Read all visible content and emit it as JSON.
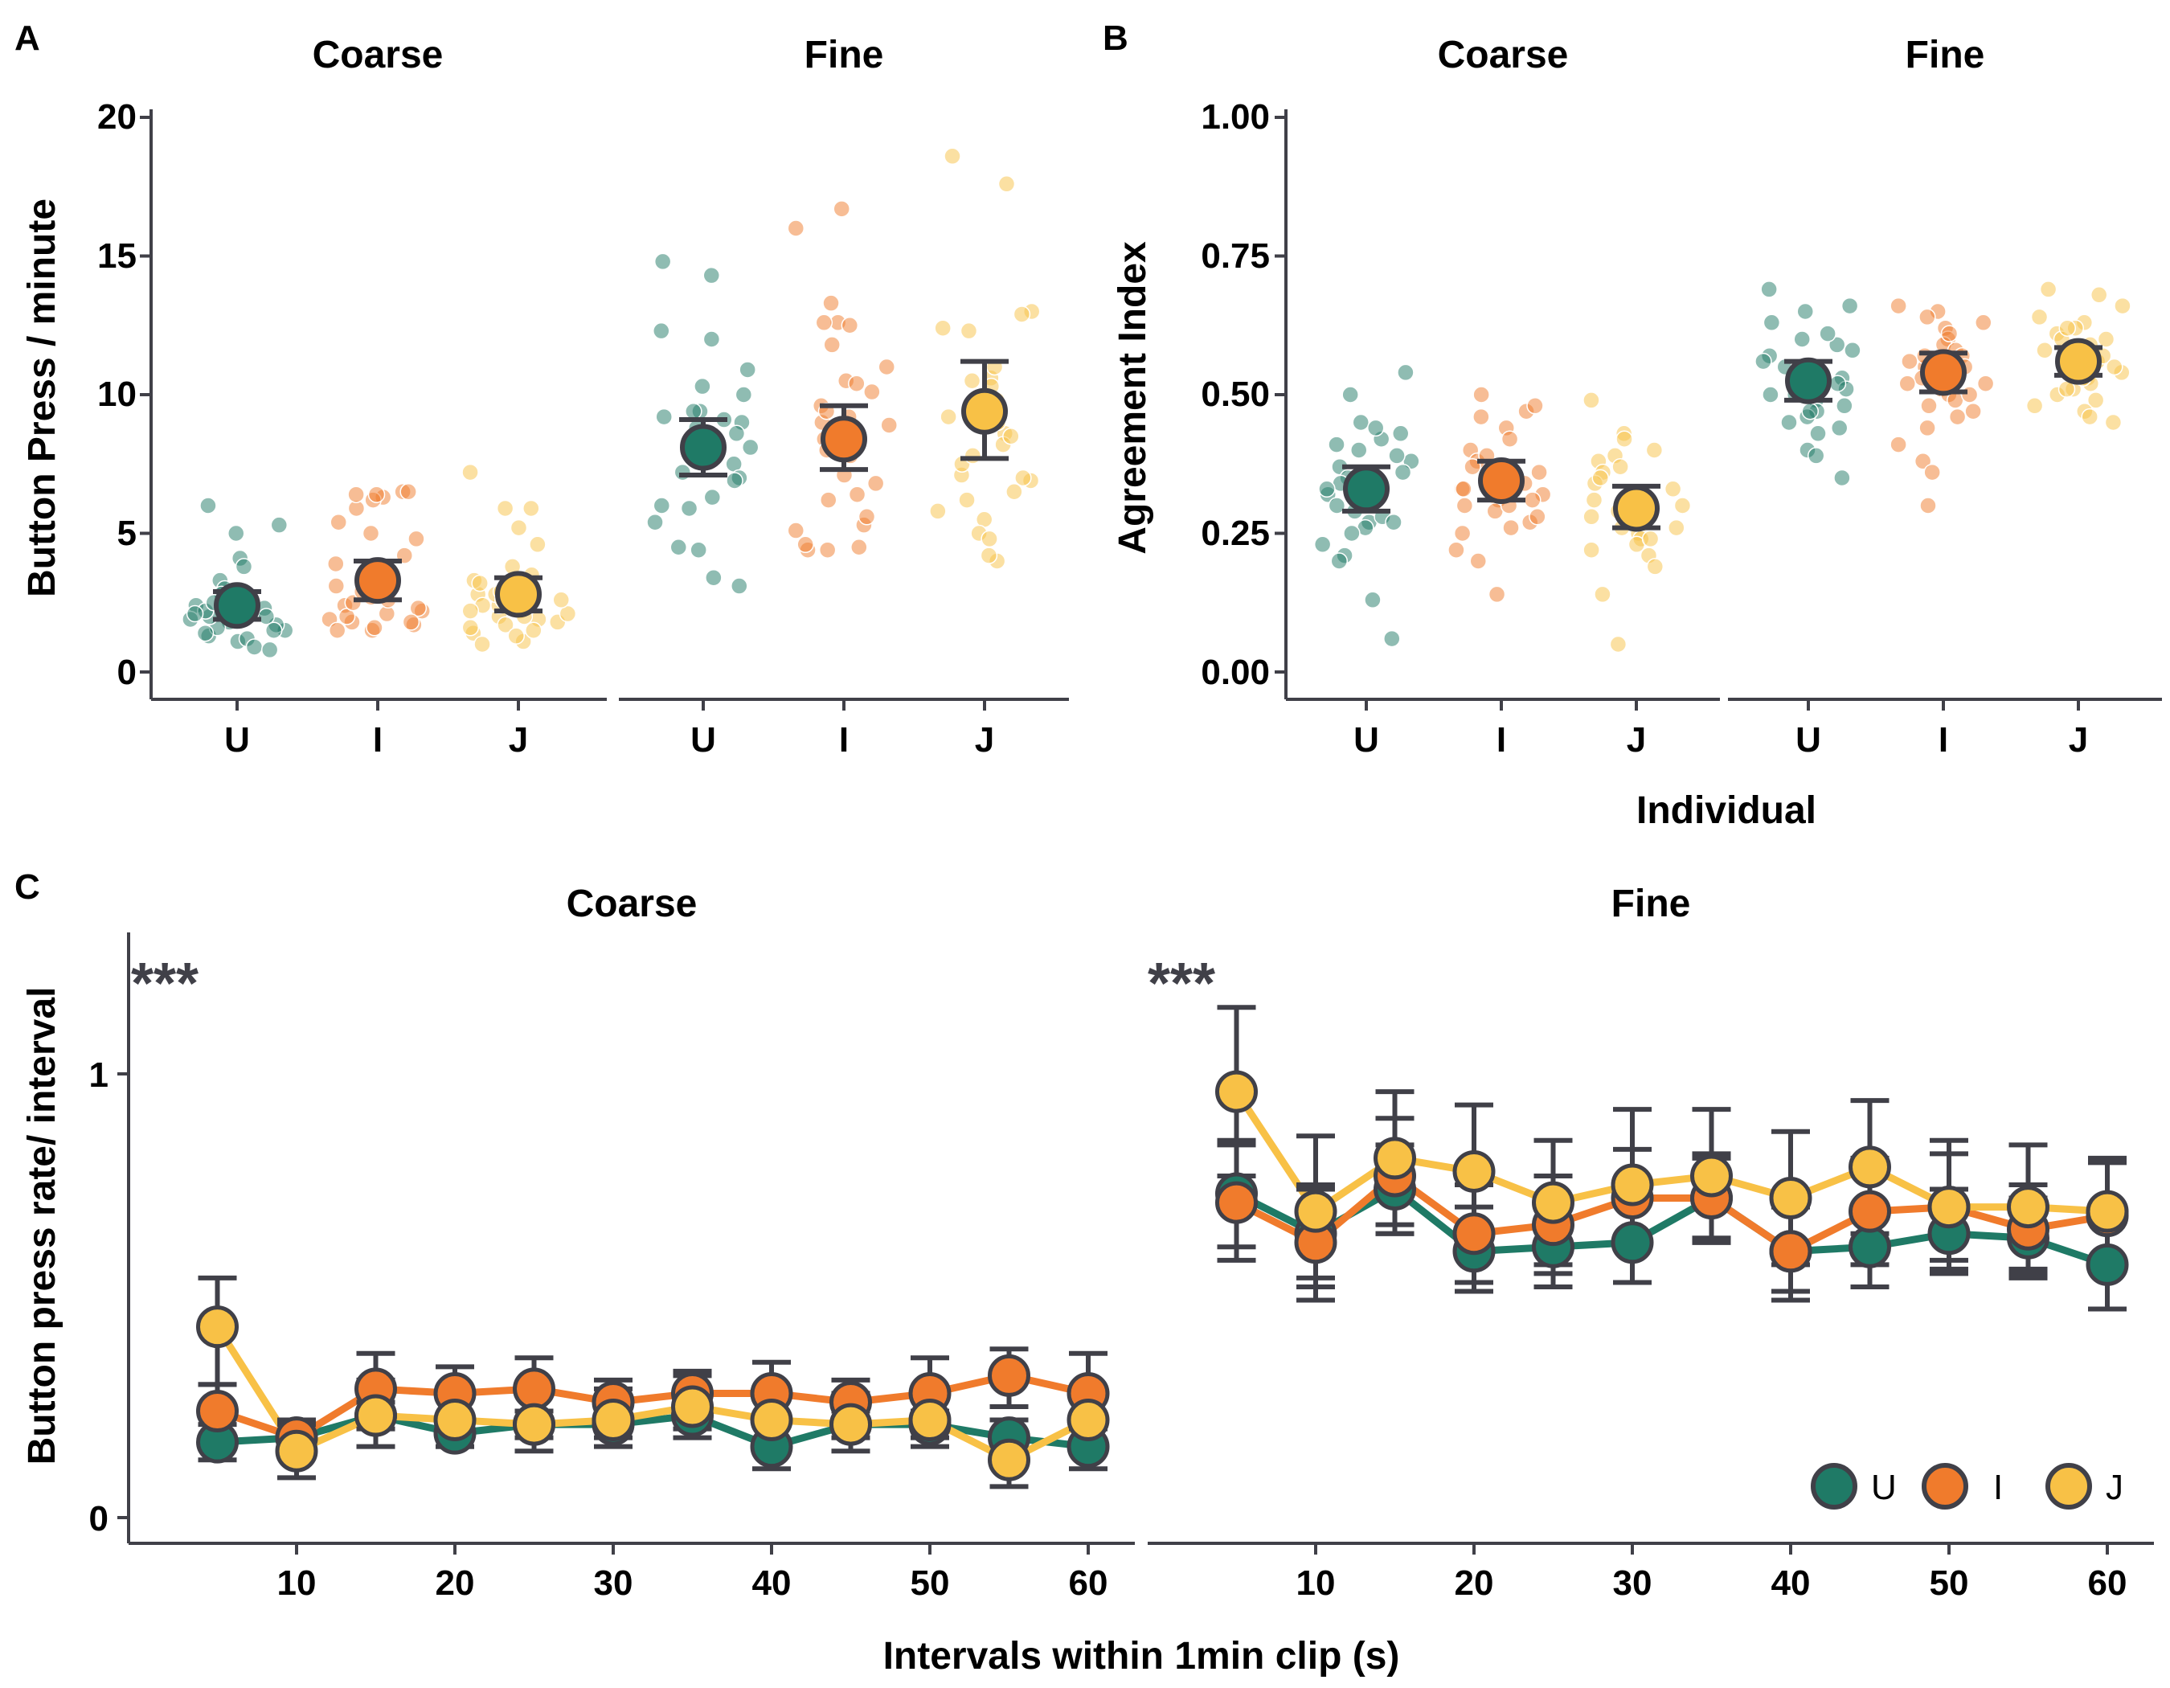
{
  "colors": {
    "U": "#1f7a66",
    "I": "#f07b2c",
    "J": "#f8c146",
    "axis": "#404048"
  },
  "panels": {
    "A": {
      "letter": "A",
      "ylabel": "Button Press / minute",
      "ylim": [
        -1,
        21
      ],
      "yticks": [
        "0",
        "5",
        "10",
        "15",
        "20"
      ],
      "facets": [
        "Coarse",
        "Fine"
      ],
      "categories": [
        "U",
        "I",
        "J"
      ]
    },
    "B": {
      "letter": "B",
      "ylabel": "Agreement Index",
      "xlabel": "Individual",
      "ylim": [
        -0.05,
        1.05
      ],
      "yticks": [
        "0.00",
        "0.25",
        "0.50",
        "0.75",
        "1.00"
      ],
      "facets": [
        "Coarse",
        "Fine"
      ],
      "categories": [
        "U",
        "I",
        "J"
      ]
    },
    "C": {
      "letter": "C",
      "ylabel": "Button press rate/ interval",
      "xlabel": "Intervals within 1min clip (s)",
      "ylim": [
        -0.05,
        1.3
      ],
      "yticks": [
        "0",
        "1"
      ],
      "xticks": [
        "10",
        "20",
        "30",
        "40",
        "50",
        "60"
      ],
      "facets": [
        "Coarse",
        "Fine"
      ],
      "annotation": "***"
    }
  },
  "legend": [
    {
      "key": "U",
      "label": "U"
    },
    {
      "key": "I",
      "label": "I"
    },
    {
      "key": "J",
      "label": "J"
    }
  ],
  "chart_data": [
    {
      "type": "scatter",
      "panel": "A",
      "ylabel": "Button Press / minute",
      "facets": [
        "Coarse",
        "Fine"
      ],
      "categories": [
        "U",
        "I",
        "J"
      ],
      "ylim": [
        0,
        21
      ],
      "summary": {
        "Coarse": {
          "U": {
            "mean": 2.4,
            "lo": 1.9,
            "hi": 2.9
          },
          "I": {
            "mean": 3.3,
            "lo": 2.6,
            "hi": 4.0
          },
          "J": {
            "mean": 2.8,
            "lo": 2.2,
            "hi": 3.4
          }
        },
        "Fine": {
          "U": {
            "mean": 8.1,
            "lo": 7.1,
            "hi": 9.1
          },
          "I": {
            "mean": 8.4,
            "lo": 7.3,
            "hi": 9.6
          },
          "J": {
            "mean": 9.4,
            "lo": 7.7,
            "hi": 11.2
          }
        }
      },
      "points": {
        "Coarse": {
          "U": [
            5.3,
            3.3,
            2.6,
            2.1,
            1.8,
            1.5,
            1.3,
            1.6,
            2.0,
            2.4,
            1.1,
            2.2,
            3.0,
            4.1,
            5.0,
            2.8,
            1.9,
            2.5,
            6.0,
            3.8,
            2.3,
            1.2,
            1.7,
            2.1,
            0.9,
            1.4,
            0.8,
            2.2,
            2.0,
            1.5
          ],
          "I": [
            5.9,
            4.2,
            6.4,
            6.3,
            2.4,
            1.8,
            2.0,
            5.0,
            1.5,
            6.5,
            3.9,
            2.2,
            1.6,
            5.4,
            2.7,
            6.5,
            3.1,
            1.9,
            2.5,
            6.2,
            1.7,
            2.9,
            2.3,
            1.5,
            3.3,
            4.8,
            2.1,
            6.4,
            1.8,
            2.6
          ],
          "J": [
            7.2,
            5.9,
            4.6,
            2.8,
            2.4,
            3.3,
            1.8,
            1.4,
            2.1,
            2.0,
            1.6,
            3.8,
            2.6,
            2.2,
            1.1,
            5.2,
            3.5,
            1.9,
            1.0,
            2.4,
            1.7,
            2.8,
            3.2,
            1.3,
            2.0,
            5.9,
            2.6,
            1.5,
            2.9,
            2.2
          ]
        },
        "Fine": {
          "U": [
            12.3,
            10.9,
            9.4,
            9.2,
            8.8,
            7.5,
            6.0,
            5.4,
            4.5,
            4.4,
            7.0,
            8.0,
            10.0,
            14.8,
            14.3,
            9.0,
            6.3,
            7.8,
            8.6,
            3.4,
            10.3,
            12.0,
            3.1,
            8.1,
            9.4,
            6.9,
            5.9,
            8.3,
            7.2,
            9.1
          ],
          "I": [
            16.0,
            12.6,
            11.0,
            10.5,
            9.2,
            7.1,
            6.4,
            5.3,
            4.4,
            8.4,
            13.3,
            9.6,
            4.6,
            16.7,
            12.5,
            10.4,
            6.2,
            4.5,
            8.0,
            5.1,
            9.0,
            11.8,
            4.4,
            7.8,
            12.6,
            5.6,
            8.9,
            10.1,
            6.8,
            9.4
          ],
          "J": [
            18.6,
            17.6,
            13.0,
            12.4,
            10.6,
            9.5,
            7.1,
            6.5,
            4.0,
            5.5,
            12.3,
            8.6,
            4.2,
            6.9,
            11.0,
            9.0,
            5.0,
            7.5,
            8.2,
            5.8,
            10.3,
            9.8,
            12.9,
            6.2,
            8.5,
            7.0,
            4.8,
            10.5,
            7.8,
            9.2
          ]
        }
      }
    },
    {
      "type": "scatter",
      "panel": "B",
      "ylabel": "Agreement Index",
      "xlabel": "Individual",
      "facets": [
        "Coarse",
        "Fine"
      ],
      "categories": [
        "U",
        "I",
        "J"
      ],
      "ylim": [
        0,
        1
      ],
      "summary": {
        "Coarse": {
          "U": {
            "mean": 0.33,
            "lo": 0.29,
            "hi": 0.37
          },
          "I": {
            "mean": 0.345,
            "lo": 0.31,
            "hi": 0.38
          },
          "J": {
            "mean": 0.295,
            "lo": 0.26,
            "hi": 0.335
          }
        },
        "Fine": {
          "U": {
            "mean": 0.525,
            "lo": 0.49,
            "hi": 0.56
          },
          "I": {
            "mean": 0.54,
            "lo": 0.505,
            "hi": 0.575
          },
          "J": {
            "mean": 0.56,
            "lo": 0.535,
            "hi": 0.585
          }
        }
      },
      "points": {
        "Coarse": {
          "U": [
            0.54,
            0.5,
            0.45,
            0.42,
            0.4,
            0.38,
            0.37,
            0.35,
            0.34,
            0.32,
            0.31,
            0.3,
            0.29,
            0.27,
            0.26,
            0.25,
            0.23,
            0.21,
            0.2,
            0.13,
            0.06,
            0.44,
            0.36,
            0.33,
            0.28,
            0.41,
            0.39,
            0.31,
            0.27,
            0.43
          ],
          "I": [
            0.5,
            0.47,
            0.46,
            0.44,
            0.4,
            0.38,
            0.37,
            0.36,
            0.35,
            0.34,
            0.33,
            0.32,
            0.31,
            0.3,
            0.29,
            0.27,
            0.25,
            0.22,
            0.2,
            0.14,
            0.48,
            0.39,
            0.36,
            0.33,
            0.3,
            0.28,
            0.42,
            0.35,
            0.31,
            0.26
          ],
          "J": [
            0.49,
            0.43,
            0.4,
            0.38,
            0.36,
            0.34,
            0.33,
            0.31,
            0.3,
            0.29,
            0.28,
            0.27,
            0.26,
            0.25,
            0.24,
            0.23,
            0.21,
            0.19,
            0.14,
            0.05,
            0.42,
            0.39,
            0.35,
            0.32,
            0.3,
            0.28,
            0.26,
            0.24,
            0.37,
            0.22
          ]
        },
        "Fine": {
          "U": [
            0.69,
            0.66,
            0.65,
            0.63,
            0.6,
            0.59,
            0.57,
            0.56,
            0.55,
            0.54,
            0.53,
            0.52,
            0.51,
            0.5,
            0.49,
            0.48,
            0.47,
            0.46,
            0.44,
            0.43,
            0.4,
            0.39,
            0.35,
            0.58,
            0.55,
            0.52,
            0.5,
            0.47,
            0.45,
            0.61
          ],
          "I": [
            0.66,
            0.65,
            0.63,
            0.62,
            0.6,
            0.59,
            0.58,
            0.57,
            0.56,
            0.55,
            0.54,
            0.53,
            0.52,
            0.51,
            0.5,
            0.49,
            0.48,
            0.46,
            0.44,
            0.41,
            0.38,
            0.36,
            0.3,
            0.61,
            0.57,
            0.55,
            0.52,
            0.5,
            0.47,
            0.64
          ],
          "J": [
            0.69,
            0.68,
            0.66,
            0.64,
            0.63,
            0.62,
            0.61,
            0.6,
            0.59,
            0.58,
            0.57,
            0.56,
            0.55,
            0.54,
            0.53,
            0.52,
            0.51,
            0.5,
            0.49,
            0.48,
            0.47,
            0.46,
            0.45,
            0.6,
            0.57,
            0.55,
            0.53,
            0.51,
            0.62,
            0.58
          ]
        }
      }
    },
    {
      "type": "line",
      "panel": "C",
      "ylabel": "Button press rate/ interval",
      "xlabel": "Intervals within 1min clip (s)",
      "facets": [
        "Coarse",
        "Fine"
      ],
      "x": [
        5,
        10,
        15,
        20,
        25,
        30,
        35,
        40,
        45,
        50,
        55,
        60
      ],
      "ylim": [
        0,
        1.3
      ],
      "annotation": "***",
      "series": {
        "Coarse": [
          {
            "name": "U",
            "values": [
              0.17,
              0.18,
              0.23,
              0.19,
              0.21,
              0.21,
              0.23,
              0.16,
              0.21,
              0.21,
              0.18,
              0.16
            ],
            "lo": [
              0.13,
              0.15,
              0.2,
              0.16,
              0.18,
              0.18,
              0.2,
              0.11,
              0.18,
              0.18,
              0.14,
              0.11
            ],
            "hi": [
              0.21,
              0.21,
              0.26,
              0.22,
              0.24,
              0.24,
              0.26,
              0.21,
              0.24,
              0.24,
              0.22,
              0.21
            ]
          },
          {
            "name": "I",
            "values": [
              0.24,
              0.18,
              0.29,
              0.28,
              0.29,
              0.26,
              0.28,
              0.28,
              0.26,
              0.28,
              0.32,
              0.28
            ],
            "lo": [
              0.18,
              0.14,
              0.22,
              0.22,
              0.22,
              0.21,
              0.23,
              0.21,
              0.21,
              0.21,
              0.25,
              0.2
            ],
            "hi": [
              0.3,
              0.22,
              0.37,
              0.34,
              0.36,
              0.31,
              0.33,
              0.35,
              0.31,
              0.36,
              0.38,
              0.37
            ]
          },
          {
            "name": "J",
            "values": [
              0.43,
              0.15,
              0.23,
              0.22,
              0.21,
              0.22,
              0.25,
              0.22,
              0.21,
              0.22,
              0.13,
              0.22
            ],
            "lo": [
              0.3,
              0.09,
              0.16,
              0.16,
              0.15,
              0.16,
              0.18,
              0.16,
              0.15,
              0.16,
              0.07,
              0.15
            ],
            "hi": [
              0.54,
              0.21,
              0.31,
              0.29,
              0.28,
              0.29,
              0.32,
              0.29,
              0.28,
              0.29,
              0.19,
              0.29
            ]
          }
        ],
        "Fine": [
          {
            "name": "U",
            "values": [
              0.73,
              0.64,
              0.74,
              0.6,
              0.61,
              0.62,
              0.72,
              0.6,
              0.61,
              0.64,
              0.63,
              0.57
            ],
            "lo": [
              0.61,
              0.54,
              0.64,
              0.51,
              0.52,
              0.53,
              0.63,
              0.51,
              0.52,
              0.55,
              0.54,
              0.47
            ],
            "hi": [
              0.85,
              0.74,
              0.84,
              0.7,
              0.7,
              0.72,
              0.81,
              0.7,
              0.7,
              0.74,
              0.72,
              0.67
            ]
          },
          {
            "name": "I",
            "values": [
              0.71,
              0.62,
              0.77,
              0.64,
              0.66,
              0.72,
              0.72,
              0.6,
              0.69,
              0.7,
              0.65,
              0.68
            ],
            "lo": [
              0.58,
              0.49,
              0.64,
              0.53,
              0.55,
              0.61,
              0.62,
              0.49,
              0.57,
              0.58,
              0.55,
              0.56
            ],
            "hi": [
              0.84,
              0.75,
              0.9,
              0.75,
              0.77,
              0.83,
              0.82,
              0.71,
              0.81,
              0.82,
              0.75,
              0.8
            ]
          },
          {
            "name": "J",
            "values": [
              0.96,
              0.69,
              0.81,
              0.78,
              0.71,
              0.75,
              0.77,
              0.72,
              0.79,
              0.7,
              0.7,
              0.69
            ],
            "lo": [
              0.77,
              0.52,
              0.66,
              0.63,
              0.57,
              0.61,
              0.62,
              0.57,
              0.64,
              0.56,
              0.56,
              0.58
            ],
            "hi": [
              1.15,
              0.86,
              0.96,
              0.93,
              0.85,
              0.92,
              0.92,
              0.87,
              0.94,
              0.85,
              0.84,
              0.81
            ]
          }
        ]
      }
    }
  ]
}
